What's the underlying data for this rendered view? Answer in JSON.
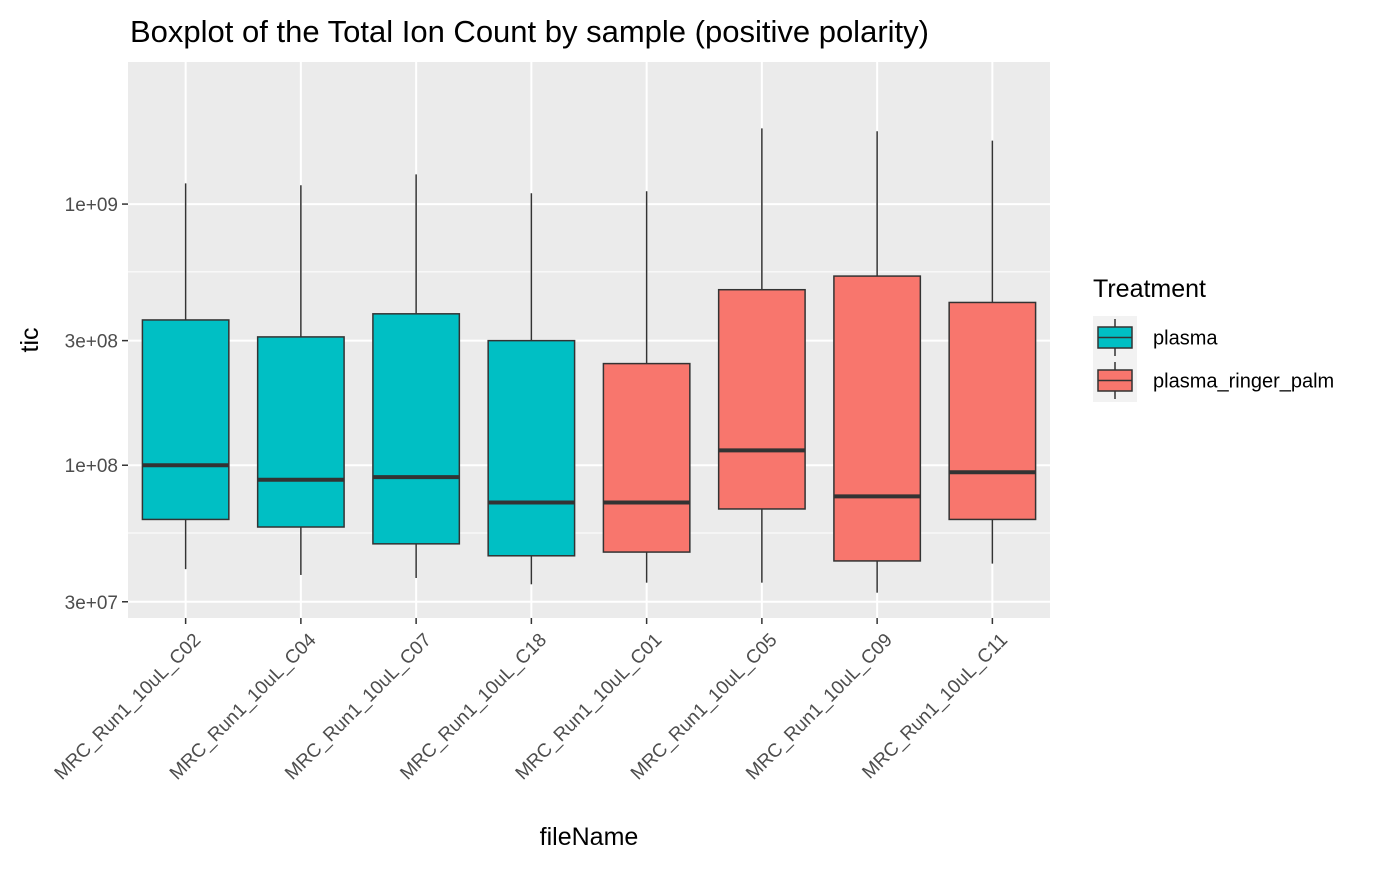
{
  "chart_data": {
    "type": "boxplot",
    "title": "Boxplot of the Total Ion Count by sample (positive polarity)",
    "xlabel": "fileName",
    "ylabel": "tic",
    "y_scale": "log10",
    "ylim": [
      26000000,
      3500000000
    ],
    "y_ticks": [
      {
        "value": 30000000,
        "label": "3e+07"
      },
      {
        "value": 100000000,
        "label": "1e+08"
      },
      {
        "value": 300000000,
        "label": "3e+08"
      },
      {
        "value": 1000000000,
        "label": "1e+09"
      }
    ],
    "y_minor_gridlines": [
      55000000,
      550000000
    ],
    "grid": true,
    "legend": {
      "title": "Treatment",
      "position": "right",
      "entries": [
        {
          "name": "plasma",
          "color": "#00BFC4"
        },
        {
          "name": "plasma_ringer_palm",
          "color": "#F8766D"
        }
      ]
    },
    "categories": [
      "MRC_Run1_10uL_C02",
      "MRC_Run1_10uL_C04",
      "MRC_Run1_10uL_C07",
      "MRC_Run1_10uL_C18",
      "MRC_Run1_10uL_C01",
      "MRC_Run1_10uL_C05",
      "MRC_Run1_10uL_C09",
      "MRC_Run1_10uL_C11"
    ],
    "boxes": [
      {
        "sample": "MRC_Run1_10uL_C02",
        "treatment": "plasma",
        "min": 40000000,
        "q1": 62000000,
        "median": 100000000,
        "q3": 360000000,
        "max": 1200000000
      },
      {
        "sample": "MRC_Run1_10uL_C04",
        "treatment": "plasma",
        "min": 38000000,
        "q1": 58000000,
        "median": 88000000,
        "q3": 310000000,
        "max": 1180000000
      },
      {
        "sample": "MRC_Run1_10uL_C07",
        "treatment": "plasma",
        "min": 37000000,
        "q1": 50000000,
        "median": 90000000,
        "q3": 380000000,
        "max": 1300000000
      },
      {
        "sample": "MRC_Run1_10uL_C18",
        "treatment": "plasma",
        "min": 35000000,
        "q1": 45000000,
        "median": 72000000,
        "q3": 300000000,
        "max": 1100000000
      },
      {
        "sample": "MRC_Run1_10uL_C01",
        "treatment": "plasma_ringer_palm",
        "min": 35500000,
        "q1": 46500000,
        "median": 72000000,
        "q3": 245000000,
        "max": 1120000000
      },
      {
        "sample": "MRC_Run1_10uL_C05",
        "treatment": "plasma_ringer_palm",
        "min": 35500000,
        "q1": 68000000,
        "median": 114000000,
        "q3": 470000000,
        "max": 1950000000
      },
      {
        "sample": "MRC_Run1_10uL_C09",
        "treatment": "plasma_ringer_palm",
        "min": 32500000,
        "q1": 43000000,
        "median": 76000000,
        "q3": 530000000,
        "max": 1900000000
      },
      {
        "sample": "MRC_Run1_10uL_C11",
        "treatment": "plasma_ringer_palm",
        "min": 42000000,
        "q1": 62000000,
        "median": 94000000,
        "q3": 420000000,
        "max": 1750000000
      }
    ]
  }
}
